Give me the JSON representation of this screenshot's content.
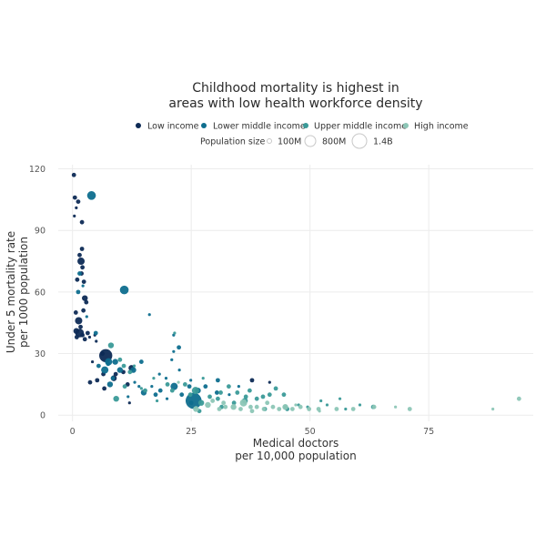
{
  "chart_data": {
    "type": "scatter",
    "title_lines": [
      "Childhood mortality is highest in",
      "areas with low health workforce density"
    ],
    "xlabel_lines": [
      "Medical doctors",
      "per 10,000 population"
    ],
    "ylabel_lines": [
      "Under 5 mortality rate",
      "per 1000 population"
    ],
    "xlim": [
      -3,
      97
    ],
    "ylim": [
      -3,
      122
    ],
    "x_ticks": [
      0,
      25,
      50,
      75
    ],
    "y_ticks": [
      0,
      30,
      60,
      90,
      120
    ],
    "grid": true,
    "legend_placement": "top-center",
    "series": [
      {
        "name": "Low income",
        "color": "#0d2a55",
        "points": [
          [
            0.3,
            117,
            3
          ],
          [
            0.5,
            106,
            3
          ],
          [
            0.4,
            97,
            2
          ],
          [
            0.8,
            101,
            2
          ],
          [
            1.2,
            104,
            3
          ],
          [
            2,
            94,
            3
          ],
          [
            1.5,
            78,
            3
          ],
          [
            2.0,
            81,
            3
          ],
          [
            1.8,
            75,
            5
          ],
          [
            2.1,
            72,
            3
          ],
          [
            1.9,
            69,
            3
          ],
          [
            1,
            66,
            3
          ],
          [
            2.4,
            65,
            3
          ],
          [
            2.6,
            57,
            4
          ],
          [
            2.9,
            55,
            3
          ],
          [
            2.3,
            51,
            3
          ],
          [
            0.7,
            50,
            3
          ],
          [
            1.3,
            46,
            5
          ],
          [
            1.7,
            43,
            3
          ],
          [
            0.8,
            41,
            4
          ],
          [
            1.5,
            40,
            6
          ],
          [
            2.1,
            39,
            3
          ],
          [
            0.9,
            38,
            3
          ],
          [
            3.2,
            40,
            3
          ],
          [
            2.6,
            37,
            3
          ],
          [
            3.6,
            38,
            2
          ],
          [
            5.0,
            36,
            2
          ],
          [
            4.7,
            39,
            2
          ],
          [
            7,
            29,
            9
          ],
          [
            6.3,
            30,
            3
          ],
          [
            6.5,
            20,
            3
          ],
          [
            5.2,
            17,
            3
          ],
          [
            8.7,
            18,
            4
          ],
          [
            12.4,
            23,
            4
          ],
          [
            10.7,
            21,
            3
          ],
          [
            9.1,
            20,
            3
          ],
          [
            3.7,
            16,
            3
          ],
          [
            6.7,
            13,
            3
          ],
          [
            11.6,
            15,
            3
          ],
          [
            37.8,
            17,
            3
          ],
          [
            41.5,
            16,
            2
          ],
          [
            12.0,
            6,
            2
          ],
          [
            4.2,
            26,
            2
          ]
        ]
      },
      {
        "name": "Lower middle income",
        "color": "#0e6e8e",
        "points": [
          [
            4.0,
            107,
            6
          ],
          [
            10.9,
            61,
            6
          ],
          [
            1.5,
            69,
            3
          ],
          [
            1.2,
            60,
            3
          ],
          [
            2.2,
            63,
            2
          ],
          [
            3.0,
            48,
            2
          ],
          [
            4.9,
            40,
            3
          ],
          [
            7.6,
            26,
            5
          ],
          [
            7.5,
            25,
            3
          ],
          [
            5.5,
            24,
            3
          ],
          [
            9,
            26,
            4
          ],
          [
            10,
            22,
            4
          ],
          [
            6.8,
            22,
            5
          ],
          [
            8.5,
            18,
            3
          ],
          [
            7.9,
            15,
            4
          ],
          [
            12.8,
            22,
            4
          ],
          [
            14.5,
            26,
            3
          ],
          [
            16.2,
            49,
            2
          ],
          [
            21.3,
            39,
            2
          ],
          [
            21.3,
            31,
            2
          ],
          [
            22.4,
            33,
            3
          ],
          [
            20.9,
            27,
            2
          ],
          [
            22.5,
            22,
            2
          ],
          [
            18.3,
            20,
            2
          ],
          [
            19.7,
            18,
            2
          ],
          [
            21.4,
            14,
            5
          ],
          [
            25.5,
            7,
            11
          ],
          [
            15,
            11,
            4
          ],
          [
            17.5,
            10,
            3
          ],
          [
            24.6,
            14,
            3
          ],
          [
            26.4,
            12,
            4
          ],
          [
            16.7,
            14,
            2
          ],
          [
            14.0,
            14,
            2
          ],
          [
            18.5,
            12,
            3
          ],
          [
            24.9,
            17,
            2
          ],
          [
            30.4,
            11,
            3
          ],
          [
            30.6,
            17,
            3
          ],
          [
            33.0,
            10,
            2
          ],
          [
            35.0,
            14,
            2
          ],
          [
            28.0,
            14,
            3
          ],
          [
            11.7,
            9,
            2
          ],
          [
            19.9,
            8,
            2
          ],
          [
            13.1,
            16,
            2
          ],
          [
            23.0,
            10,
            3
          ],
          [
            25.0,
            6,
            3
          ]
        ]
      },
      {
        "name": "Upper middle income",
        "color": "#3a9a98",
        "points": [
          [
            8.1,
            34,
            4
          ],
          [
            10,
            27,
            3
          ],
          [
            10.8,
            24,
            3
          ],
          [
            13,
            24,
            2
          ],
          [
            12.1,
            21,
            3
          ],
          [
            11.0,
            14,
            3
          ],
          [
            9.2,
            8,
            4
          ],
          [
            14.5,
            13,
            2
          ],
          [
            15.3,
            12,
            3
          ],
          [
            17.1,
            18,
            2
          ],
          [
            20.0,
            15,
            3
          ],
          [
            21.0,
            12,
            3
          ],
          [
            23.7,
            15,
            3
          ],
          [
            24.8,
            10,
            3
          ],
          [
            25.9,
            12,
            5
          ],
          [
            28.9,
            9,
            3
          ],
          [
            30.6,
            8,
            3
          ],
          [
            31.2,
            11,
            3
          ],
          [
            32.9,
            14,
            3
          ],
          [
            34.7,
            11,
            3
          ],
          [
            36.5,
            9,
            3
          ],
          [
            37.3,
            12,
            3
          ],
          [
            38.8,
            8,
            3
          ],
          [
            40.1,
            9,
            3
          ],
          [
            41.5,
            10,
            3
          ],
          [
            42.8,
            13,
            3
          ],
          [
            44.5,
            10,
            3
          ],
          [
            44.8,
            4,
            3
          ],
          [
            47.6,
            5,
            2
          ],
          [
            49.5,
            4,
            2
          ],
          [
            53.6,
            5,
            2
          ],
          [
            57.5,
            3,
            2
          ],
          [
            60.5,
            5,
            2
          ],
          [
            63.3,
            4,
            3
          ],
          [
            27.1,
            6,
            4
          ],
          [
            34.0,
            6,
            3
          ],
          [
            31.4,
            4,
            3
          ],
          [
            26.7,
            2,
            3
          ],
          [
            17.8,
            7,
            2
          ],
          [
            27.5,
            18,
            2
          ],
          [
            36.3,
            7,
            4
          ],
          [
            40.5,
            3,
            3
          ],
          [
            52.3,
            7,
            2
          ],
          [
            56.3,
            8,
            2
          ],
          [
            45.2,
            3,
            3
          ],
          [
            21.5,
            40,
            2
          ]
        ]
      },
      {
        "name": "High income",
        "color": "#8cc6b6",
        "points": [
          [
            28.5,
            5,
            4
          ],
          [
            32.2,
            4,
            3
          ],
          [
            33.9,
            4,
            4
          ],
          [
            36.0,
            6,
            5
          ],
          [
            35.4,
            3,
            3
          ],
          [
            37.5,
            4,
            3
          ],
          [
            38.8,
            4,
            3
          ],
          [
            40.3,
            3,
            3
          ],
          [
            42.2,
            4,
            3
          ],
          [
            43.5,
            3,
            3
          ],
          [
            44.8,
            4,
            4
          ],
          [
            46.3,
            3,
            3
          ],
          [
            48.0,
            4,
            3
          ],
          [
            49.8,
            3,
            3
          ],
          [
            51.8,
            3,
            3
          ],
          [
            55.6,
            3,
            3
          ],
          [
            59.1,
            3,
            3
          ],
          [
            63.5,
            4,
            3
          ],
          [
            71.0,
            3,
            3
          ],
          [
            88.5,
            3,
            2
          ],
          [
            94.0,
            8,
            3
          ],
          [
            30.9,
            3,
            3
          ],
          [
            41.0,
            6,
            3
          ],
          [
            26.0,
            3,
            4
          ],
          [
            29.5,
            7,
            3
          ],
          [
            47.0,
            5,
            2
          ],
          [
            52.0,
            2,
            2
          ],
          [
            68.0,
            4,
            2
          ],
          [
            31.8,
            6,
            3
          ],
          [
            37.8,
            2,
            3
          ],
          [
            22.3,
            16,
            2
          ]
        ]
      }
    ],
    "size_legend": {
      "label": "Population size",
      "items": [
        "100M",
        "800M",
        "1.4B"
      ]
    }
  }
}
